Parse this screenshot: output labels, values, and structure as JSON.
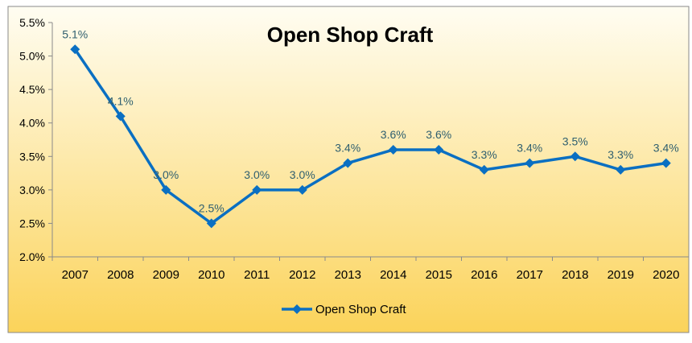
{
  "chart_data": {
    "type": "line",
    "title": "Open Shop Craft",
    "categories": [
      "2007",
      "2008",
      "2009",
      "2010",
      "2011",
      "2012",
      "2013",
      "2014",
      "2015",
      "2016",
      "2017",
      "2018",
      "2019",
      "2020"
    ],
    "series": [
      {
        "name": "Open Shop Craft",
        "values": [
          5.1,
          4.1,
          3.0,
          2.5,
          3.0,
          3.0,
          3.4,
          3.6,
          3.6,
          3.3,
          3.4,
          3.5,
          3.3,
          3.4
        ],
        "labels": [
          "5.1%",
          "4.1%",
          "3.0%",
          "2.5%",
          "3.0%",
          "3.0%",
          "3.4%",
          "3.6%",
          "3.6%",
          "3.3%",
          "3.4%",
          "3.5%",
          "3.3%",
          "3.4%"
        ]
      }
    ],
    "ylim": [
      2.0,
      5.5
    ],
    "yticks": [
      "2.0%",
      "2.5%",
      "3.0%",
      "3.5%",
      "4.0%",
      "4.5%",
      "5.0%",
      "5.5%"
    ],
    "grid": false,
    "legend_position": "bottom",
    "colors": {
      "line": "#0a6fc2",
      "background_top": "#fffdf2",
      "background_bottom": "#fbd35a",
      "data_label": "#2f5f6f"
    }
  }
}
